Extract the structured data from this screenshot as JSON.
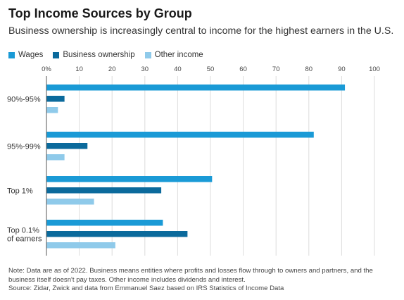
{
  "chart_data": {
    "type": "bar",
    "orientation": "horizontal",
    "title": "Top Income Sources by Group",
    "subtitle": "Business ownership is increasingly central to income for the highest earners in the U.S.",
    "categories": [
      "90%-95%",
      "95%-99%",
      "Top 1%",
      "Top 0.1% of earners"
    ],
    "series": [
      {
        "name": "Wages",
        "color": "#1a9ad6",
        "values": [
          91,
          81.5,
          50.5,
          35.5
        ]
      },
      {
        "name": "Business ownership",
        "color": "#0b6a9c",
        "values": [
          5.5,
          12.5,
          35,
          43
        ]
      },
      {
        "name": "Other income",
        "color": "#8fcaea",
        "values": [
          3.5,
          5.5,
          14.5,
          21
        ]
      }
    ],
    "xlim": [
      0,
      100
    ],
    "xticks": [
      "0%",
      "10",
      "20",
      "30",
      "40",
      "50",
      "60",
      "70",
      "80",
      "90",
      "100"
    ],
    "tick_values": [
      0,
      10,
      20,
      30,
      40,
      50,
      60,
      70,
      80,
      90,
      100
    ],
    "xlabel": "",
    "ylabel": "",
    "grid": true,
    "legend_position": "top-left"
  },
  "notes": {
    "note": "Note: Data are as of 2022. Business means entities where profits and losses flow through to owners and partners, and the business itself doesn't pay taxes. Other income includes dividends and interest.",
    "source": "Source: Zidar, Zwick and data from Emmanuel Saez based on IRS Statistics of Income Data"
  }
}
